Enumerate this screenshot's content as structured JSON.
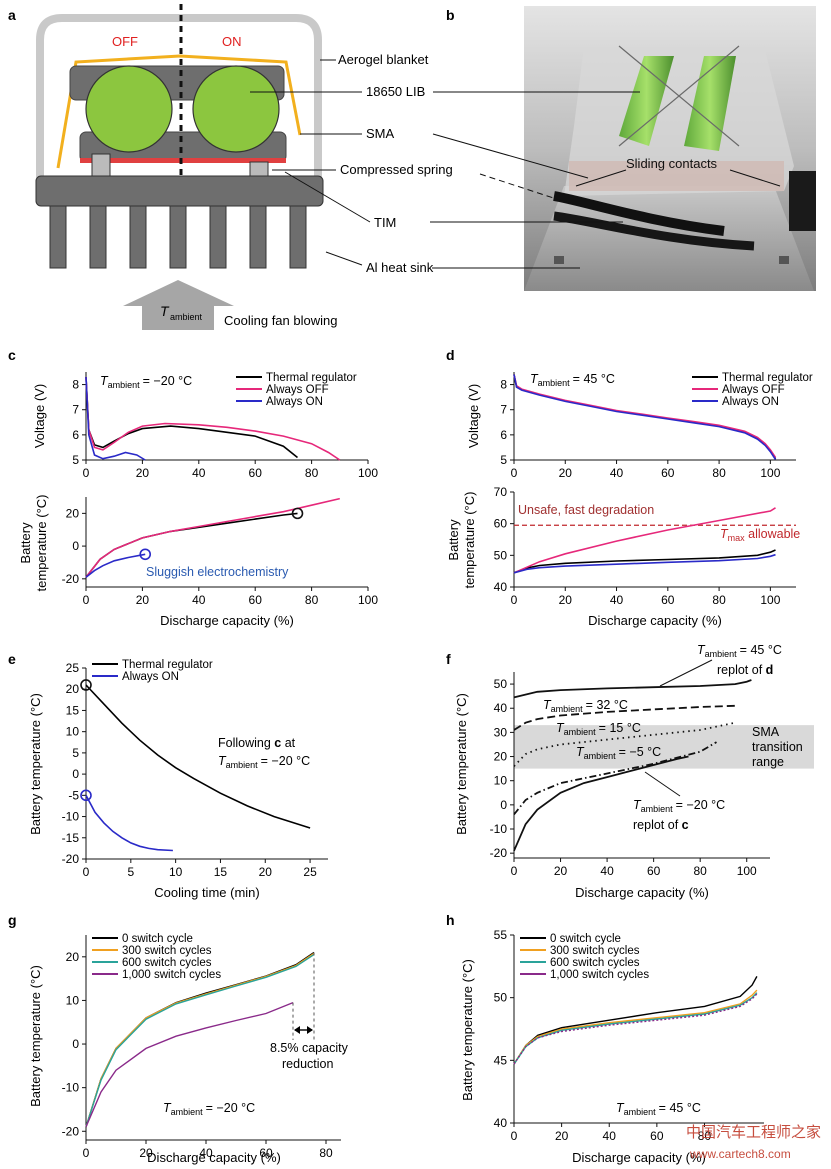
{
  "panel_labels": {
    "a": "a",
    "b": "b",
    "c": "c",
    "d": "d",
    "e": "e",
    "f": "f",
    "g": "g",
    "h": "h"
  },
  "colors": {
    "thermal_regulator": "#000000",
    "always_off": "#e6287a",
    "always_on": "#2a2ac8",
    "tmax_line": "#c0282c",
    "sma_band": "#d9d9d9",
    "switch_0": "#000000",
    "switch_300": "#f0a020",
    "switch_600": "#2aa39a",
    "switch_1000": "#8a2a8a",
    "aerogel": "#c9c9c9",
    "sma_wire": "#f2b01e",
    "cell": "#8cc63f",
    "heat_sink": "#6e6e6e"
  },
  "diagram_a": {
    "off_label": "OFF",
    "on_label": "ON",
    "labels": [
      "Aerogel blanket",
      "18650 LIB",
      "SMA",
      "Compressed spring",
      "TIM",
      "Al heat sink"
    ],
    "fan_sub": "ambient",
    "fan_label": "Cooling fan blowing"
  },
  "photo_b": {
    "label": "Sliding contacts"
  },
  "chart_data": [
    {
      "panel": "c",
      "type": "line",
      "annotation_text": "= −20 °C",
      "legend": [
        "Thermal regulator",
        "Always OFF",
        "Always ON"
      ],
      "top": {
        "ylabel": "Voltage (V)",
        "ylim": [
          5,
          8.5
        ],
        "yticks": [
          5,
          6,
          7,
          8
        ],
        "xlim": [
          0,
          100
        ],
        "series": [
          {
            "name": "Thermal regulator",
            "x": [
              0,
              1,
              3,
              6,
              10,
              15,
              20,
              30,
              40,
              50,
              60,
              70,
              75
            ],
            "y": [
              8.3,
              6.2,
              5.6,
              5.5,
              5.75,
              6.05,
              6.25,
              6.35,
              6.25,
              6.1,
              5.95,
              5.55,
              5.1
            ]
          },
          {
            "name": "Always OFF",
            "x": [
              0,
              1,
              3,
              6,
              10,
              15,
              20,
              28,
              40,
              50,
              60,
              70,
              80,
              86,
              90
            ],
            "y": [
              8.3,
              6.2,
              5.5,
              5.4,
              5.7,
              6.1,
              6.35,
              6.45,
              6.4,
              6.3,
              6.15,
              5.95,
              5.65,
              5.3,
              5.0
            ]
          },
          {
            "name": "Always ON",
            "x": [
              0,
              1,
              3,
              6,
              10,
              14,
              18,
              21
            ],
            "y": [
              8.3,
              6.0,
              5.2,
              5.05,
              5.15,
              5.3,
              5.2,
              5.0
            ]
          }
        ]
      },
      "bottom": {
        "ylabel": [
          "Battery",
          "temperature (°C)"
        ],
        "ylim": [
          -25,
          30
        ],
        "yticks": [
          -20,
          0,
          20
        ],
        "xlim": [
          0,
          100
        ],
        "xticks": [
          0,
          20,
          40,
          60,
          80,
          100
        ],
        "xlabel": "Discharge capacity (%)",
        "series": [
          {
            "name": "Thermal regulator",
            "x": [
              0,
              5,
              10,
              20,
              30,
              40,
              50,
              60,
              70,
              75
            ],
            "y": [
              -19,
              -8,
              -2,
              5,
              9,
              11.5,
              14,
              16.5,
              19,
              20
            ]
          },
          {
            "name": "Always OFF",
            "x": [
              0,
              5,
              10,
              20,
              30,
              40,
              50,
              60,
              70,
              80,
              90
            ],
            "y": [
              -19,
              -8,
              -2,
              5,
              9,
              12,
              15,
              18,
              21,
              25,
              29
            ]
          },
          {
            "name": "Always ON",
            "x": [
              0,
              3,
              6,
              10,
              15,
              21
            ],
            "y": [
              -19,
              -15,
              -12,
              -9,
              -7,
              -5
            ]
          }
        ],
        "annotation": "Sluggish electrochemistry"
      }
    },
    {
      "panel": "d",
      "type": "line",
      "annotation_text": "= 45 °C",
      "legend": [
        "Thermal regulator",
        "Always OFF",
        "Always ON"
      ],
      "top": {
        "ylabel": "Voltage (V)",
        "ylim": [
          5,
          8.5
        ],
        "yticks": [
          5,
          6,
          7,
          8
        ],
        "xlim": [
          0,
          110
        ],
        "xticks": [
          0,
          20,
          40,
          60,
          80,
          100
        ],
        "series": [
          {
            "name": "Thermal regulator",
            "x": [
              0,
              1,
              3,
              10,
              20,
              30,
              40,
              50,
              60,
              70,
              80,
              90,
              95,
              98,
              100,
              102
            ],
            "y": [
              8.4,
              7.9,
              7.8,
              7.6,
              7.35,
              7.15,
              6.95,
              6.8,
              6.65,
              6.5,
              6.35,
              6.1,
              5.85,
              5.6,
              5.35,
              5.05
            ]
          },
          {
            "name": "Always OFF",
            "x": [
              0,
              1,
              3,
              10,
              20,
              30,
              40,
              50,
              60,
              70,
              80,
              90,
              95,
              98,
              100,
              102
            ],
            "y": [
              8.4,
              7.95,
              7.82,
              7.62,
              7.37,
              7.17,
              6.97,
              6.82,
              6.67,
              6.53,
              6.38,
              6.14,
              5.9,
              5.65,
              5.4,
              5.1
            ]
          },
          {
            "name": "Always ON",
            "x": [
              0,
              1,
              3,
              10,
              20,
              30,
              40,
              50,
              60,
              70,
              80,
              90,
              95,
              98,
              100,
              102
            ],
            "y": [
              8.4,
              7.9,
              7.78,
              7.58,
              7.33,
              7.13,
              6.93,
              6.78,
              6.63,
              6.48,
              6.33,
              6.08,
              5.83,
              5.58,
              5.33,
              5.02
            ]
          }
        ]
      },
      "bottom": {
        "ylabel": [
          "Battery",
          "temperature (°C)"
        ],
        "ylim": [
          40,
          70
        ],
        "yticks": [
          40,
          50,
          60,
          70
        ],
        "xlim": [
          0,
          110
        ],
        "xticks": [
          0,
          20,
          40,
          60,
          80,
          100
        ],
        "xlabel": "Discharge capacity (%)",
        "series": [
          {
            "name": "Thermal regulator",
            "x": [
              0,
              5,
              10,
              20,
              40,
              60,
              80,
              95,
              100,
              102
            ],
            "y": [
              44.5,
              46,
              46.8,
              47.5,
              48.2,
              48.7,
              49.2,
              50,
              51,
              51.7
            ]
          },
          {
            "name": "Always OFF",
            "x": [
              0,
              10,
              20,
              40,
              60,
              80,
              100,
              102
            ],
            "y": [
              44.5,
              48,
              50.5,
              54.5,
              58,
              61,
              64,
              65
            ]
          },
          {
            "name": "Always ON",
            "x": [
              0,
              5,
              10,
              20,
              40,
              60,
              80,
              95,
              100,
              102
            ],
            "y": [
              44.5,
              45.6,
              46.1,
              46.6,
              47.2,
              47.8,
              48.3,
              49,
              49.7,
              50.2
            ]
          }
        ],
        "threshold": {
          "y": 59.5,
          "top_label": "Unsafe, fast degradation",
          "right_label_main": "T",
          "right_label_sub": "max",
          "right_label_tail": " allowable"
        }
      }
    },
    {
      "panel": "e",
      "type": "line",
      "xlabel": "Cooling time (min)",
      "ylabel": "Battery temperature (°C)",
      "xlim": [
        0,
        27
      ],
      "xticks": [
        0,
        5,
        10,
        15,
        20,
        25
      ],
      "ylim": [
        -20,
        25
      ],
      "yticks": [
        -20,
        -15,
        -10,
        -5,
        0,
        5,
        10,
        15,
        20,
        25
      ],
      "legend": [
        "Thermal regulator",
        "Always ON"
      ],
      "series": [
        {
          "name": "Thermal regulator",
          "x": [
            0,
            2,
            4,
            6,
            8,
            10,
            12,
            15,
            18,
            21,
            25
          ],
          "y": [
            21,
            16.5,
            12,
            8,
            4.5,
            1.5,
            -1,
            -4.5,
            -7.5,
            -10,
            -12.7
          ]
        },
        {
          "name": "Always ON",
          "x": [
            0,
            1,
            2,
            3,
            4,
            5,
            6,
            7,
            8,
            9.7
          ],
          "y": [
            -5,
            -9,
            -11.5,
            -13.5,
            -15,
            -16.2,
            -17,
            -17.5,
            -17.8,
            -18
          ]
        }
      ],
      "annotation": {
        "line1a": "Following ",
        "line1b": "c",
        "line1c": " at",
        "line2": "= −20 °C"
      }
    },
    {
      "panel": "f",
      "type": "line",
      "xlabel": "Discharge capacity (%)",
      "ylabel": "Battery temperature (°C)",
      "xlim": [
        0,
        110
      ],
      "xticks": [
        0,
        20,
        40,
        60,
        80,
        100
      ],
      "ylim": [
        -22,
        55
      ],
      "yticks": [
        -20,
        -10,
        0,
        10,
        20,
        30,
        40,
        50
      ],
      "band": {
        "ymin": 15,
        "ymax": 33,
        "label": [
          "SMA",
          "transition",
          "range"
        ]
      },
      "series": [
        {
          "label": "45",
          "style": "solid",
          "x": [
            0,
            10,
            20,
            40,
            60,
            80,
            95,
            100,
            102
          ],
          "y": [
            44.5,
            46.8,
            47.5,
            48.2,
            48.7,
            49.2,
            50,
            51,
            51.7
          ]
        },
        {
          "label": "32",
          "style": "dashed",
          "x": [
            0,
            5,
            10,
            20,
            40,
            60,
            80,
            95
          ],
          "y": [
            31,
            34,
            35.5,
            37,
            38.5,
            39.5,
            40.5,
            41
          ]
        },
        {
          "label": "15",
          "style": "dotted",
          "x": [
            0,
            5,
            10,
            20,
            40,
            60,
            80,
            95
          ],
          "y": [
            16,
            21,
            23,
            25,
            27,
            29,
            31,
            34
          ]
        },
        {
          "label": "-5",
          "style": "dashdot",
          "x": [
            0,
            5,
            10,
            20,
            40,
            60,
            80,
            87
          ],
          "y": [
            -4,
            2,
            5,
            9,
            13,
            17,
            22,
            26
          ]
        },
        {
          "label": "-20",
          "style": "solid",
          "x": [
            0,
            5,
            10,
            20,
            30,
            40,
            50,
            60,
            70,
            75
          ],
          "y": [
            -19,
            -8,
            -2,
            5,
            9,
            11.5,
            14,
            16.5,
            19,
            20
          ]
        }
      ],
      "annotations": {
        "t45": "= 45 °C",
        "t45b_a": "replot of ",
        "t45b_b": "d",
        "t32": "= 32 °C",
        "t15": "= 15 °C",
        "t5": "= −5 °C",
        "t20": "= −20 °C",
        "t20b_a": "replot of ",
        "t20b_b": "c"
      }
    },
    {
      "panel": "g",
      "type": "line",
      "xlabel": "Discharge capacity (%)",
      "ylabel": "Battery temperature (°C)",
      "xlim": [
        0,
        85
      ],
      "xticks": [
        0,
        20,
        40,
        60,
        80
      ],
      "ylim": [
        -22,
        25
      ],
      "yticks": [
        -20,
        -10,
        0,
        10,
        20
      ],
      "legend": [
        "0 switch cycle",
        "300 switch cycles",
        "600 switch cycles",
        "1,000 switch cycles"
      ],
      "series": [
        {
          "name": "0 switch cycle",
          "x": [
            0,
            5,
            10,
            20,
            30,
            40,
            50,
            60,
            70,
            76
          ],
          "y": [
            -19,
            -8,
            -1,
            6,
            9.5,
            11.7,
            13.6,
            15.6,
            18.2,
            21
          ]
        },
        {
          "name": "300 switch cycles",
          "x": [
            0,
            5,
            10,
            20,
            30,
            40,
            50,
            60,
            70,
            76
          ],
          "y": [
            -19,
            -8,
            -1,
            6,
            9.4,
            11.5,
            13.5,
            15.5,
            18,
            20.8
          ]
        },
        {
          "name": "600 switch cycles",
          "x": [
            0,
            5,
            10,
            20,
            30,
            40,
            50,
            60,
            70,
            76
          ],
          "y": [
            -19,
            -8.3,
            -1.3,
            5.7,
            9.2,
            11.3,
            13.3,
            15.3,
            17.8,
            20.5
          ]
        },
        {
          "name": "1,000 switch cycles",
          "x": [
            0,
            5,
            10,
            20,
            30,
            40,
            50,
            60,
            69
          ],
          "y": [
            -19,
            -11,
            -6,
            -1,
            1.8,
            3.7,
            5.4,
            7,
            9.5
          ]
        }
      ],
      "annotation": {
        "line1": "8.5% capacity",
        "line2": "reduction",
        "ambient": "= −20 °C"
      }
    },
    {
      "panel": "h",
      "type": "line",
      "xlabel": "Discharge capacity (%)",
      "ylabel": "Battery temperature (°C)",
      "xlim": [
        0,
        105
      ],
      "xticks": [
        0,
        20,
        40,
        60,
        80
      ],
      "ylim": [
        40,
        55
      ],
      "yticks": [
        40,
        45,
        50,
        55
      ],
      "legend": [
        "0 switch cycle",
        "300 switch cycles",
        "600 switch cycles",
        "1,000 switch cycles"
      ],
      "series": [
        {
          "name": "0 switch cycle",
          "x": [
            0,
            5,
            10,
            20,
            40,
            60,
            80,
            95,
            100,
            102
          ],
          "y": [
            44.7,
            46.2,
            47,
            47.6,
            48.2,
            48.8,
            49.3,
            50.1,
            51,
            51.7
          ]
        },
        {
          "name": "300 switch cycles",
          "x": [
            0,
            5,
            10,
            20,
            40,
            60,
            80,
            95,
            100,
            102
          ],
          "y": [
            44.7,
            46.2,
            46.9,
            47.5,
            48,
            48.4,
            48.8,
            49.5,
            50.2,
            50.6
          ]
        },
        {
          "name": "600 switch cycles",
          "x": [
            0,
            5,
            10,
            20,
            40,
            60,
            80,
            95,
            100,
            102
          ],
          "y": [
            44.7,
            46.1,
            46.8,
            47.4,
            47.9,
            48.3,
            48.7,
            49.4,
            50,
            50.4
          ]
        },
        {
          "name": "1,000 switch cycles",
          "x": [
            0,
            5,
            10,
            20,
            40,
            60,
            80,
            95,
            100,
            102
          ],
          "y": [
            44.7,
            46.1,
            46.8,
            47.3,
            47.8,
            48.2,
            48.6,
            49.3,
            49.9,
            50.3
          ]
        }
      ],
      "annotation": {
        "ambient": "= 45 °C"
      }
    }
  ],
  "t_ambient": {
    "main": "T",
    "sub": "ambient"
  },
  "watermark": {
    "line1": "中国汽车工程师之家",
    "line2": "www.cartech8.com"
  }
}
